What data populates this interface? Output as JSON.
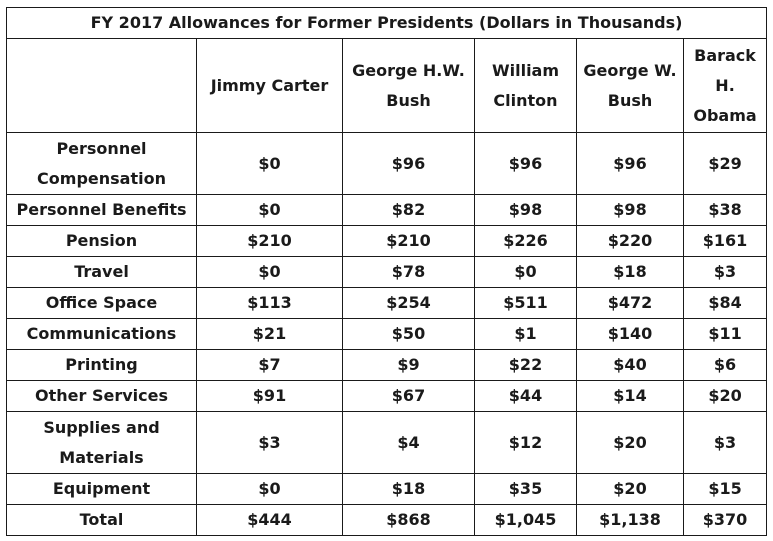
{
  "title": "FY 2017 Allowances for Former Presidents (Dollars in Thousands)",
  "columns": [
    "",
    "Jimmy Carter",
    "George H.W. Bush",
    "William Clinton",
    "George W. Bush",
    "Barack H. Obama"
  ],
  "rows": [
    {
      "label": "Personnel Compensation",
      "values": [
        "$0",
        "$96",
        "$96",
        "$96",
        "$29"
      ]
    },
    {
      "label": "Personnel Benefits",
      "values": [
        "$0",
        "$82",
        "$98",
        "$98",
        "$38"
      ]
    },
    {
      "label": "Pension",
      "values": [
        "$210",
        "$210",
        "$226",
        "$220",
        "$161"
      ]
    },
    {
      "label": "Travel",
      "values": [
        "$0",
        "$78",
        "$0",
        "$18",
        "$3"
      ]
    },
    {
      "label": "Office Space",
      "values": [
        "$113",
        "$254",
        "$511",
        "$472",
        "$84"
      ]
    },
    {
      "label": "Communications",
      "values": [
        "$21",
        "$50",
        "$1",
        "$140",
        "$11"
      ]
    },
    {
      "label": "Printing",
      "values": [
        "$7",
        "$9",
        "$22",
        "$40",
        "$6"
      ]
    },
    {
      "label": "Other Services",
      "values": [
        "$91",
        "$67",
        "$44",
        "$14",
        "$20"
      ]
    },
    {
      "label": "Supplies and Materials",
      "values": [
        "$3",
        "$4",
        "$12",
        "$20",
        "$3"
      ]
    },
    {
      "label": "Equipment",
      "values": [
        "$0",
        "$18",
        "$35",
        "$20",
        "$15"
      ]
    },
    {
      "label": "Total",
      "values": [
        "$444",
        "$868",
        "$1,045",
        "$1,138",
        "$370"
      ]
    }
  ]
}
